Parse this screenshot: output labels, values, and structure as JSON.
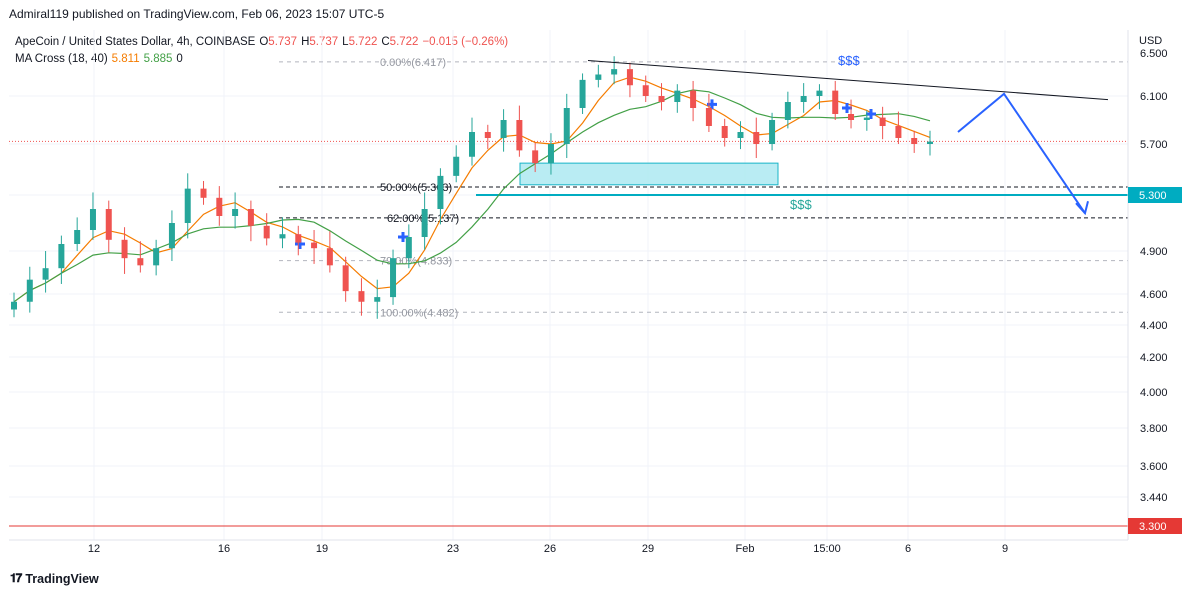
{
  "header": {
    "published": "Admiral119 published on TradingView.com, Feb 06, 2023 15:07 UTC-5"
  },
  "legend": {
    "symbol": "ApeCoin / United States Dollar, 4h, COINBASE",
    "o_label": "O",
    "o_val": "5.737",
    "h_label": "H",
    "h_val": "5.737",
    "l_label": "L",
    "l_val": "5.722",
    "c_label": "C",
    "c_val": "5.722",
    "change": "−0.015 (−0.26%)",
    "ma_label": "MA Cross (18, 40)",
    "ma_fast": "5.811",
    "ma_slow": "5.885",
    "ma_zero": "0"
  },
  "footer": {
    "brand": "TradingView"
  },
  "colors": {
    "up": "#26a69a",
    "down": "#ef5350",
    "ma_fast": "#f57c00",
    "ma_slow": "#43a047",
    "arrow": "#2962ff",
    "zone": "#b2ebf2",
    "zone_border": "#00acc1",
    "support": "#00acc1",
    "price_marker": "#ef5350",
    "bottom_marker": "#e53935"
  },
  "chart_data": {
    "type": "candlestick",
    "y_axis": {
      "unit": "USD",
      "ticks": [
        "6.500",
        "6.100",
        "5.700",
        "5.300",
        "4.900",
        "4.600",
        "4.400",
        "4.200",
        "4.000",
        "3.800",
        "3.600",
        "3.440",
        "3.300"
      ],
      "tick_values": [
        6.5,
        6.1,
        5.7,
        5.3,
        4.9,
        4.6,
        4.4,
        4.2,
        4.0,
        3.8,
        3.6,
        3.44,
        3.3
      ],
      "range": [
        3.3,
        6.55
      ]
    },
    "x_axis": {
      "ticks": [
        "12",
        "16",
        "19",
        "23",
        "26",
        "29",
        "Feb",
        "15:00",
        "6",
        "9"
      ]
    },
    "price_labels": [
      {
        "value": 5.3,
        "text": "5.300"
      },
      {
        "value": 3.3,
        "text": "3.300"
      }
    ],
    "fibonacci": [
      {
        "level": "0.00%",
        "price": 6.417,
        "text": "0.00%(6.417)"
      },
      {
        "level": "50.00%",
        "price": 5.363,
        "text": "50.00%(5.363)"
      },
      {
        "level": "62.00%",
        "price": 5.137,
        "text": "62.00%(5.137)"
      },
      {
        "level": "79.00%",
        "price": 4.833,
        "text": "79.00%(4.833)"
      },
      {
        "level": "100.00%",
        "price": 4.482,
        "text": "100.00%(4.482)"
      }
    ],
    "annotations": [
      {
        "text": "$$$",
        "near": "trendline"
      },
      {
        "text": "$$$",
        "near": "62% level"
      }
    ],
    "ma_fast": {
      "period": 18,
      "last": 5.811
    },
    "ma_slow": {
      "period": 40,
      "last": 5.885
    },
    "last_price": 5.722,
    "approx_closes": [
      4.55,
      4.7,
      4.78,
      4.95,
      5.05,
      5.2,
      4.98,
      4.85,
      4.8,
      4.92,
      5.1,
      5.35,
      5.28,
      5.15,
      5.2,
      5.08,
      4.99,
      5.02,
      4.96,
      4.92,
      4.8,
      4.62,
      4.55,
      4.58,
      4.85,
      5.0,
      5.2,
      5.45,
      5.6,
      5.8,
      5.75,
      5.9,
      5.65,
      5.55,
      5.7,
      6.0,
      6.25,
      6.3,
      6.35,
      6.2,
      6.1,
      6.05,
      6.15,
      6.0,
      5.85,
      5.75,
      5.8,
      5.7,
      5.9,
      6.05,
      6.1,
      6.15,
      5.95,
      5.9,
      5.92,
      5.85,
      5.75,
      5.7,
      5.72
    ]
  }
}
